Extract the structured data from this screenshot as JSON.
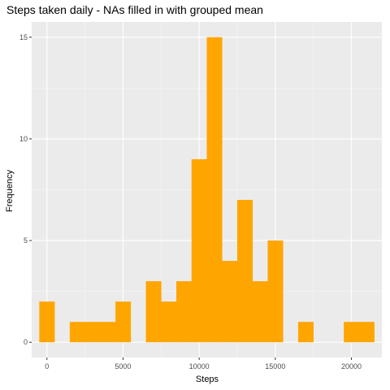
{
  "chart_data": {
    "type": "bar",
    "title": "Steps taken daily - NAs filled in with grouped mean",
    "xlabel": "Steps",
    "ylabel": "Frequency",
    "bin_width": 1000,
    "bin_centers": [
      0,
      1000,
      2000,
      3000,
      4000,
      5000,
      6000,
      7000,
      8000,
      9000,
      10000,
      11000,
      12000,
      13000,
      14000,
      15000,
      16000,
      17000,
      18000,
      19000,
      20000,
      21000
    ],
    "values": [
      2,
      0,
      1,
      1,
      1,
      2,
      0,
      3,
      2,
      3,
      9,
      15,
      4,
      7,
      3,
      5,
      0,
      1,
      0,
      0,
      1,
      1
    ],
    "xlim": [
      -1000,
      22000
    ],
    "ylim": [
      -0.75,
      15.75
    ],
    "x_ticks": [
      0,
      5000,
      10000,
      15000,
      20000
    ],
    "x_tick_labels": [
      "0",
      "5000",
      "10000",
      "15000",
      "20000"
    ],
    "x_minor_ticks": [
      2500,
      7500,
      12500,
      17500
    ],
    "y_ticks": [
      0,
      5,
      10,
      15
    ],
    "y_tick_labels": [
      "0",
      "5",
      "10",
      "15"
    ],
    "y_minor_ticks": [
      2.5,
      7.5,
      12.5
    ],
    "grid": true,
    "legend": "none",
    "colors": {
      "bar": "#FFA500",
      "panel_background": "#EBEBEB",
      "grid_major": "#FFFFFF",
      "grid_minor": "#F5F5F5",
      "tick": "#333333"
    }
  }
}
